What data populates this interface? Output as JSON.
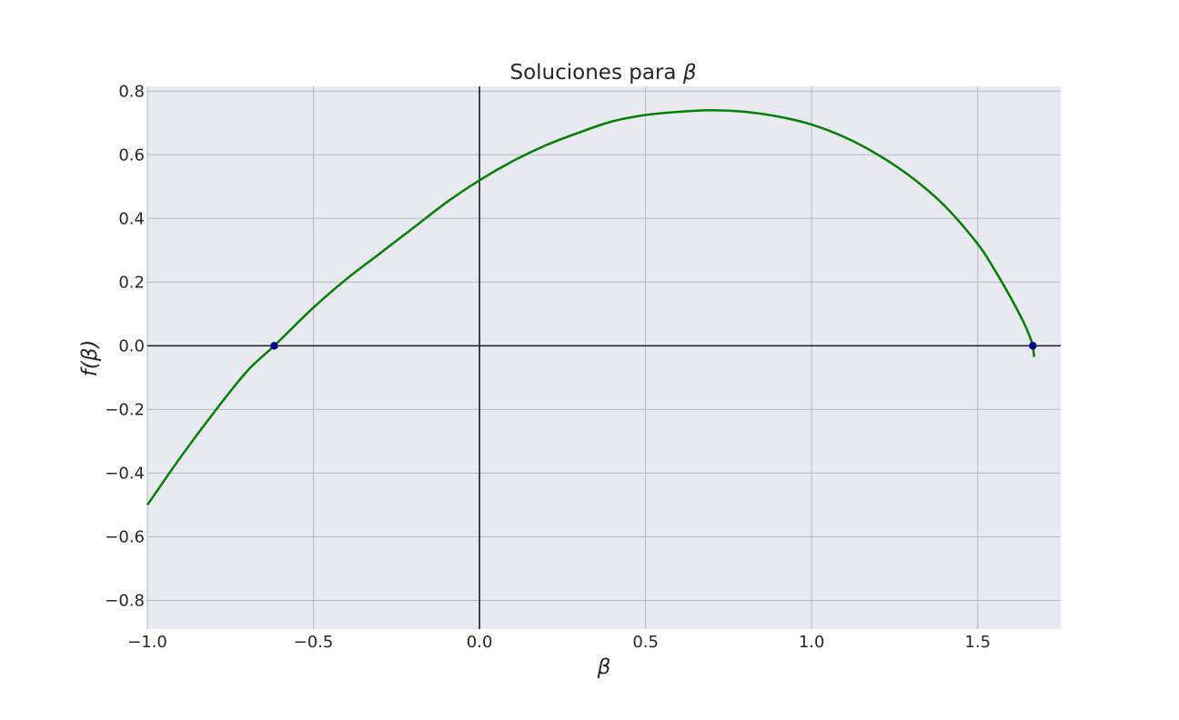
{
  "chart_data": {
    "type": "line",
    "title_prefix": "Soluciones para ",
    "title_symbol": "β",
    "xlabel": "β",
    "ylabel": "f(β)",
    "xlim": [
      -1.0,
      1.75
    ],
    "ylim": [
      -0.89,
      0.815
    ],
    "x_ticks": [
      -1.0,
      -0.5,
      0.0,
      0.5,
      1.0,
      1.5
    ],
    "x_tick_labels": [
      "−1.0",
      "−0.5",
      "0.0",
      "0.5",
      "1.0",
      "1.5"
    ],
    "y_ticks": [
      0.8,
      0.6,
      0.4,
      0.2,
      0.0,
      -0.2,
      -0.4,
      -0.6,
      -0.8
    ],
    "y_tick_labels": [
      "0.8",
      "0.6",
      "0.4",
      "0.2",
      "0.0",
      "−0.2",
      "−0.4",
      "−0.6",
      "−0.8"
    ],
    "grid": true,
    "reference_lines": {
      "x": 0.0,
      "y": 0.0
    },
    "series": [
      {
        "color": "#008000",
        "x": [
          -1.0,
          -0.9,
          -0.8,
          -0.7,
          -0.618,
          -0.5,
          -0.4,
          -0.3,
          -0.2,
          -0.1,
          0.0,
          0.1,
          0.2,
          0.3,
          0.4,
          0.5,
          0.6,
          0.7,
          0.8,
          0.9,
          1.0,
          1.1,
          1.2,
          1.3,
          1.4,
          1.5,
          1.55,
          1.6,
          1.64,
          1.66,
          1.666,
          1.67
        ],
        "y": [
          -0.5,
          -0.35,
          -0.21,
          -0.08,
          0.0,
          0.12,
          0.21,
          0.29,
          0.37,
          0.45,
          0.52,
          0.58,
          0.63,
          0.67,
          0.705,
          0.725,
          0.735,
          0.74,
          0.735,
          0.72,
          0.695,
          0.655,
          0.6,
          0.53,
          0.44,
          0.32,
          0.24,
          0.15,
          0.07,
          0.02,
          0.0,
          -0.035
        ]
      }
    ],
    "points": [
      {
        "x": -0.618,
        "y": 0.0,
        "color": "#00008b"
      },
      {
        "x": 1.666,
        "y": 0.0,
        "color": "#00008b"
      }
    ],
    "colors": {
      "plot_background": "#e9e9f1",
      "grid": "#b9b9c1",
      "reference_line": "#1e1e1e"
    }
  }
}
